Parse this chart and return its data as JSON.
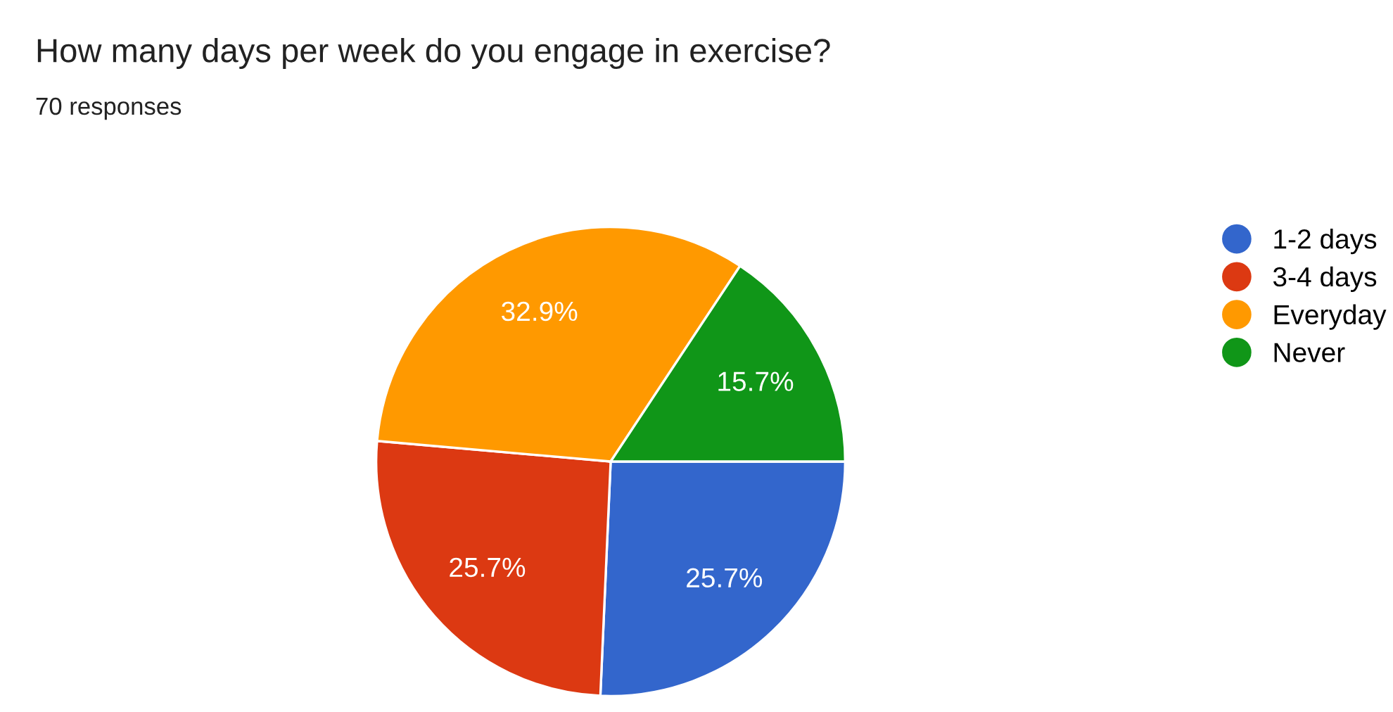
{
  "chart_data": {
    "type": "pie",
    "title": "How many days per week do you engage in exercise?",
    "subtitle": "70 responses",
    "categories": [
      "1-2 days",
      "3-4 days",
      "Everyday",
      "Never"
    ],
    "values": [
      25.7,
      25.7,
      32.9,
      15.7
    ],
    "colors": [
      "#3366cc",
      "#dc3912",
      "#ff9900",
      "#109618"
    ],
    "value_labels": [
      "25.7%",
      "25.7%",
      "32.9%",
      "15.7%"
    ],
    "legend": "right"
  }
}
